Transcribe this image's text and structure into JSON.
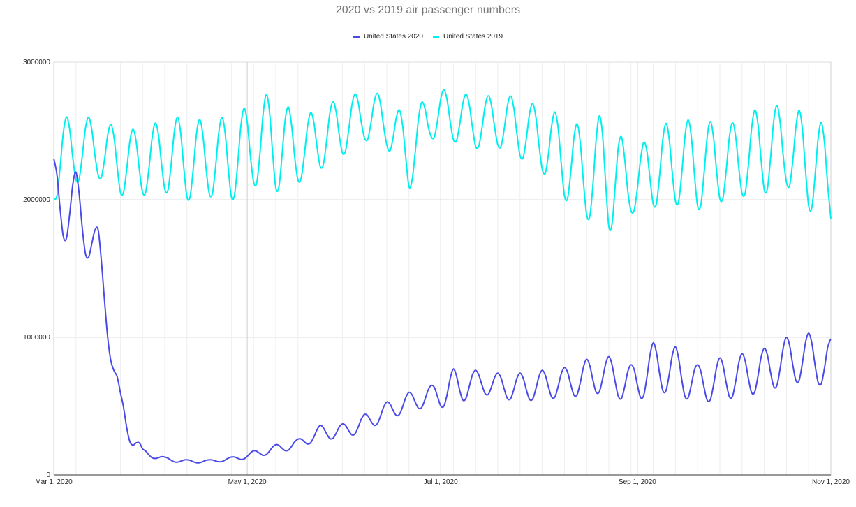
{
  "chart_data": {
    "type": "line",
    "title": "2020 vs 2019 air passenger numbers",
    "xlabel": "",
    "ylabel": "",
    "ylim": [
      0,
      3000000
    ],
    "y_ticks": [
      "0",
      "1000000",
      "2000000",
      "3000000"
    ],
    "x_ticks": [
      "Mar 1, 2020",
      "May 1, 2020",
      "Jul 1, 2020",
      "Sep 1, 2020",
      "Nov 1, 2020"
    ],
    "x_range": [
      "2020-03-01",
      "2020-11-01"
    ],
    "grid": true,
    "legend_position": "top-center",
    "series": [
      {
        "name": "United States 2020",
        "color": "#4a4ae8",
        "weekly_dates": [
          "2020-03-01",
          "2020-03-08",
          "2020-03-15",
          "2020-03-22",
          "2020-03-29",
          "2020-04-05",
          "2020-04-12",
          "2020-04-19",
          "2020-04-26",
          "2020-05-03",
          "2020-05-10",
          "2020-05-17",
          "2020-05-24",
          "2020-05-31",
          "2020-06-07",
          "2020-06-14",
          "2020-06-21",
          "2020-06-28",
          "2020-07-05",
          "2020-07-12",
          "2020-07-19",
          "2020-07-26",
          "2020-08-02",
          "2020-08-09",
          "2020-08-16",
          "2020-08-23",
          "2020-08-30",
          "2020-09-06",
          "2020-09-13",
          "2020-09-20",
          "2020-09-27",
          "2020-10-04",
          "2020-10-11",
          "2020-10-18",
          "2020-10-25",
          "2020-11-01"
        ],
        "weekly_high": [
          2300000,
          2200000,
          1780000,
          600000,
          190000,
          130000,
          110000,
          110000,
          130000,
          175000,
          220000,
          260000,
          360000,
          370000,
          440000,
          530000,
          600000,
          650000,
          770000,
          760000,
          740000,
          740000,
          760000,
          780000,
          840000,
          860000,
          800000,
          960000,
          930000,
          800000,
          850000,
          880000,
          920000,
          1000000,
          1030000,
          990000
        ],
        "weekly_low": [
          1750000,
          1650000,
          1500000,
          300000,
          140000,
          100000,
          85000,
          90000,
          100000,
          125000,
          160000,
          190000,
          260000,
          260000,
          320000,
          400000,
          460000,
          500000,
          480000,
          600000,
          560000,
          530000,
          550000,
          560000,
          580000,
          600000,
          500000,
          610000,
          580000,
          520000,
          540000,
          570000,
          600000,
          660000,
          680000,
          620000
        ]
      },
      {
        "name": "United States 2019",
        "color": "#00eeee",
        "weekly_dates": [
          "2020-03-01",
          "2020-03-08",
          "2020-03-15",
          "2020-03-22",
          "2020-03-29",
          "2020-04-05",
          "2020-04-12",
          "2020-04-19",
          "2020-04-26",
          "2020-05-03",
          "2020-05-10",
          "2020-05-17",
          "2020-05-24",
          "2020-05-31",
          "2020-06-07",
          "2020-06-14",
          "2020-06-21",
          "2020-06-28",
          "2020-07-05",
          "2020-07-12",
          "2020-07-19",
          "2020-07-26",
          "2020-08-02",
          "2020-08-09",
          "2020-08-16",
          "2020-08-23",
          "2020-08-30",
          "2020-09-06",
          "2020-09-13",
          "2020-09-20",
          "2020-09-27",
          "2020-10-04",
          "2020-10-11",
          "2020-10-18",
          "2020-10-25",
          "2020-11-01"
        ],
        "weekly_high": [
          2550000,
          2640000,
          2570000,
          2530000,
          2500000,
          2600000,
          2600000,
          2570000,
          2620000,
          2700000,
          2810000,
          2570000,
          2680000,
          2740000,
          2790000,
          2760000,
          2570000,
          2810000,
          2790000,
          2750000,
          2760000,
          2750000,
          2660000,
          2620000,
          2500000,
          2690000,
          2280000,
          2520000,
          2580000,
          2580000,
          2560000,
          2560000,
          2720000,
          2660000,
          2640000,
          2500000
        ],
        "weekly_low": [
          1980000,
          2120000,
          2160000,
          2030000,
          2030000,
          2050000,
          1990000,
          2020000,
          1990000,
          2100000,
          2050000,
          2120000,
          2220000,
          2320000,
          2430000,
          2380000,
          2070000,
          2440000,
          2420000,
          2370000,
          2380000,
          2300000,
          2200000,
          2000000,
          1860000,
          1760000,
          1900000,
          1940000,
          1960000,
          1920000,
          1980000,
          2020000,
          2040000,
          2100000,
          1920000,
          1830000
        ]
      }
    ]
  }
}
